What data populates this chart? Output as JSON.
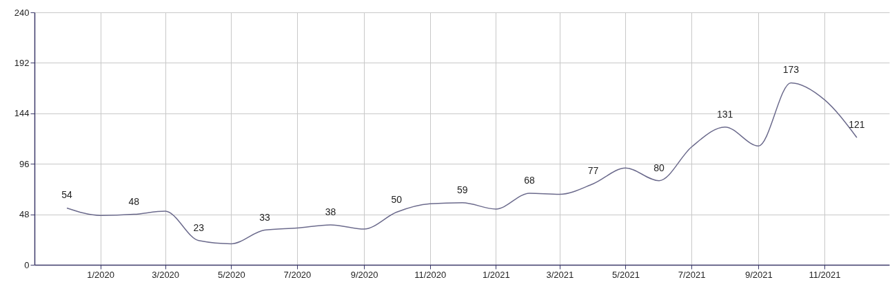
{
  "chart_data": {
    "type": "line",
    "x": [
      "2019-12",
      "2020-01",
      "2020-02",
      "2020-03",
      "2020-04",
      "2020-05",
      "2020-06",
      "2020-07",
      "2020-08",
      "2020-09",
      "2020-10",
      "2020-11",
      "2020-12",
      "2021-01",
      "2021-02",
      "2021-03",
      "2021-04",
      "2021-05",
      "2021-06",
      "2021-07",
      "2021-08",
      "2021-09",
      "2021-10",
      "2021-11",
      "2021-12"
    ],
    "series": [
      {
        "color": "#6b6a8c",
        "values": [
          54,
          47,
          48,
          51,
          23,
          20,
          33,
          35,
          38,
          34,
          50,
          58,
          59,
          53,
          68,
          67,
          77,
          92,
          80,
          112,
          131,
          113,
          173,
          157,
          121
        ],
        "value_labels": [
          "54",
          null,
          "48",
          null,
          "23",
          null,
          "33",
          null,
          "38",
          null,
          "50",
          null,
          "59",
          null,
          "68",
          null,
          "77",
          null,
          "80",
          null,
          "131",
          null,
          "173",
          null,
          "121"
        ]
      }
    ],
    "xlim": [
      "2019-11-01",
      "2021-12-31"
    ],
    "xticks": [
      {
        "value": "2020-01",
        "label": "1/2020"
      },
      {
        "value": "2020-03",
        "label": "3/2020"
      },
      {
        "value": "2020-05",
        "label": "5/2020"
      },
      {
        "value": "2020-07",
        "label": "7/2020"
      },
      {
        "value": "2020-09",
        "label": "9/2020"
      },
      {
        "value": "2020-11",
        "label": "11/2020"
      },
      {
        "value": "2021-01",
        "label": "1/2021"
      },
      {
        "value": "2021-03",
        "label": "3/2021"
      },
      {
        "value": "2021-05",
        "label": "5/2021"
      },
      {
        "value": "2021-07",
        "label": "7/2021"
      },
      {
        "value": "2021-09",
        "label": "9/2021"
      },
      {
        "value": "2021-11",
        "label": "11/2021"
      }
    ],
    "ylim": [
      0,
      240
    ],
    "yticks": [
      0,
      48,
      96,
      144,
      192,
      240
    ],
    "grid": true,
    "marker": "none",
    "line_style": "solid"
  }
}
